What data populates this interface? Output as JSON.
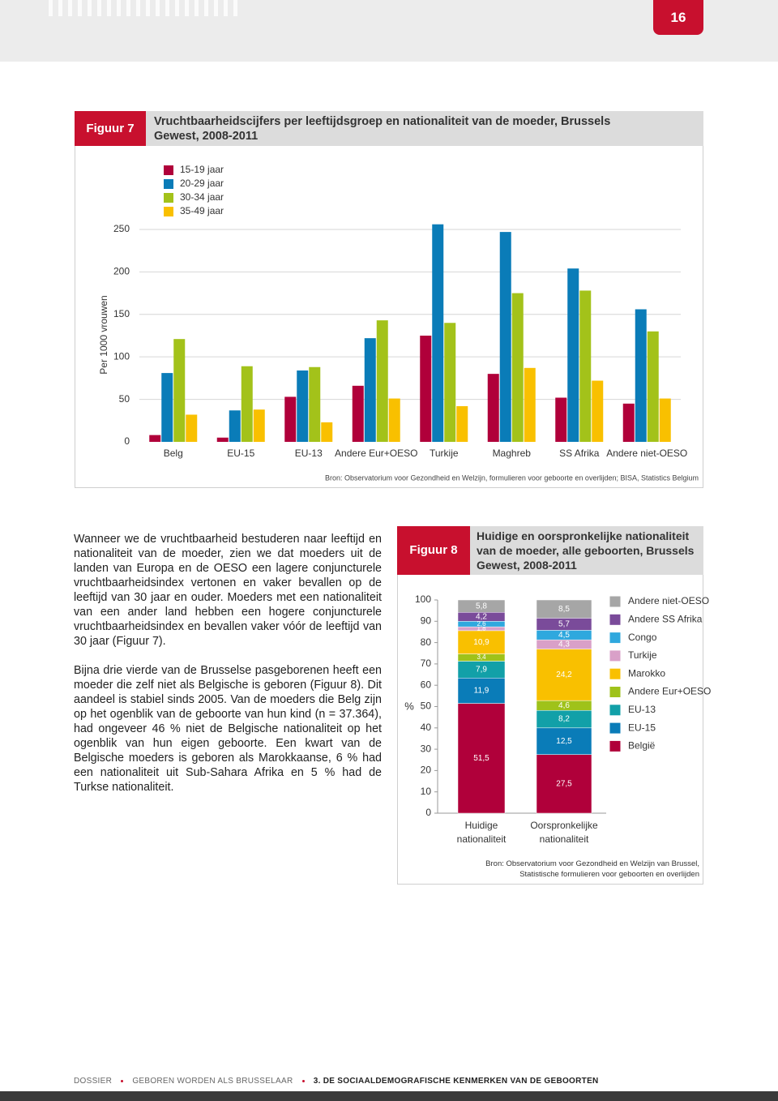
{
  "page_number": "16",
  "chart_data": [
    {
      "type": "bar",
      "label": "Figuur 7",
      "title": "Vruchtbaarheidscijfers per leeftijdsgroep en nationaliteit van de moeder, Brussels Gewest, 2008-2011",
      "y_label": "Per 1000 vrouwen",
      "source": "Bron: Observatorium voor Gezondheid en Welzijn, formulieren voor geboorte en overlijden; BISA, Statistics Belgium",
      "categories": [
        "Belg",
        "EU-15",
        "EU-13",
        "Andere Eur+OESO",
        "Turkije",
        "Maghreb",
        "SS Afrika",
        "Andere niet-OESO"
      ],
      "series": [
        {
          "name": "15-19 jaar",
          "color": "#b0003a",
          "values": [
            8,
            5,
            53,
            66,
            125,
            80,
            52,
            45
          ]
        },
        {
          "name": "20-29 jaar",
          "color": "#0a7cb8",
          "values": [
            81,
            37,
            84,
            122,
            256,
            247,
            204,
            156
          ]
        },
        {
          "name": "30-34 jaar",
          "color": "#a3c21a",
          "values": [
            121,
            89,
            88,
            143,
            140,
            175,
            178,
            130
          ]
        },
        {
          "name": "35-49 jaar",
          "color": "#f9c000",
          "values": [
            32,
            38,
            23,
            51,
            42,
            87,
            72,
            51
          ]
        }
      ],
      "ylim": [
        0,
        270
      ],
      "yticks": [
        0,
        50,
        100,
        150,
        200,
        250
      ],
      "grid": true,
      "legend": "top-left"
    },
    {
      "type": "stacked-bar",
      "label": "Figuur 8",
      "title": "Huidige en oorspronkelijke nationaliteit van de moeder, alle geboorten, Brussels Gewest, 2008-2011",
      "y_label": "%",
      "source": "Bron: Observatorium voor Gezondheid en Welzijn van Brussel, Statistische formulieren voor geboorten en overlijden",
      "categories": [
        "Huidige nationaliteit",
        "Oorspronkelijke nationaliteit"
      ],
      "series": [
        {
          "name": "België",
          "color": "#b0003a",
          "values": [
            51.5,
            27.5
          ],
          "value_labels": [
            "51,5",
            "27,5"
          ]
        },
        {
          "name": "EU-15",
          "color": "#0a7cb8",
          "values": [
            11.9,
            12.5
          ],
          "value_labels": [
            "11,9",
            "12,5"
          ]
        },
        {
          "name": "EU-13",
          "color": "#12a0a8",
          "values": [
            7.9,
            8.2
          ],
          "value_labels": [
            "7,9",
            "8,2"
          ]
        },
        {
          "name": "Andere Eur+OESO",
          "color": "#9fc21a",
          "values": [
            3.4,
            4.6
          ],
          "value_labels": [
            "3,4",
            "4,6"
          ]
        },
        {
          "name": "Marokko",
          "color": "#f9c000",
          "values": [
            10.9,
            24.2
          ],
          "value_labels": [
            "10,9",
            "24,2"
          ]
        },
        {
          "name": "Turkije",
          "color": "#d9a0c8",
          "values": [
            1.8,
            4.3
          ],
          "value_labels": [
            "1,8",
            "4,3"
          ]
        },
        {
          "name": "Congo",
          "color": "#2fa8de",
          "values": [
            2.6,
            4.5
          ],
          "value_labels": [
            "2,6",
            "4,5"
          ]
        },
        {
          "name": "Andere SS Afrika",
          "color": "#7a4b9a",
          "values": [
            4.2,
            5.7
          ],
          "value_labels": [
            "4,2",
            "5,7"
          ]
        },
        {
          "name": "Andere niet-OESO",
          "color": "#a6a6a6",
          "values": [
            5.8,
            8.5
          ],
          "value_labels": [
            "5,8",
            "8,5"
          ]
        }
      ],
      "ylim": [
        0,
        100
      ],
      "yticks": [
        0,
        10,
        20,
        30,
        40,
        50,
        60,
        70,
        80,
        90,
        100
      ],
      "legend": "right"
    }
  ],
  "body": {
    "paragraphs": [
      "Wanneer we de vruchtbaarheid bestuderen naar leeftijd en nationaliteit van de moeder, zien we dat moeders uit de landen van Europa en de OESO een lagere conjuncturele vruchtbaarheidsindex vertonen en vaker bevallen op de leeftijd van 30 jaar en ouder. Moeders met een nationaliteit van een ander land hebben een hogere conjuncturele vruchtbaarheidsindex en bevallen vaker vóór de leeftijd van 30 jaar (Figuur 7).",
      "Bijna drie vierde van de Brusselse pasgeborenen heeft een moeder die zelf niet als Belgische is geboren (Figuur 8). Dit aandeel is stabiel sinds 2005. Van de moeders die Belg zijn op het ogenblik van de geboorte van hun kind (n = 37.364), had ongeveer 46 % niet de Belgische nationaliteit op het ogenblik van hun eigen geboorte. Een kwart van de Belgische moeders is geboren als Marokkaanse, 6 % had een nationaliteit uit Sub-Sahara Afrika en 5 % had de Turkse nationaliteit."
    ]
  },
  "footer": {
    "items": [
      "DOSSIER",
      "GEBOREN WORDEN ALS BRUSSELAAR",
      "3. DE SOCIAALDEMOGRAFISCHE KENMERKEN VAN DE GEBOORTEN"
    ]
  }
}
